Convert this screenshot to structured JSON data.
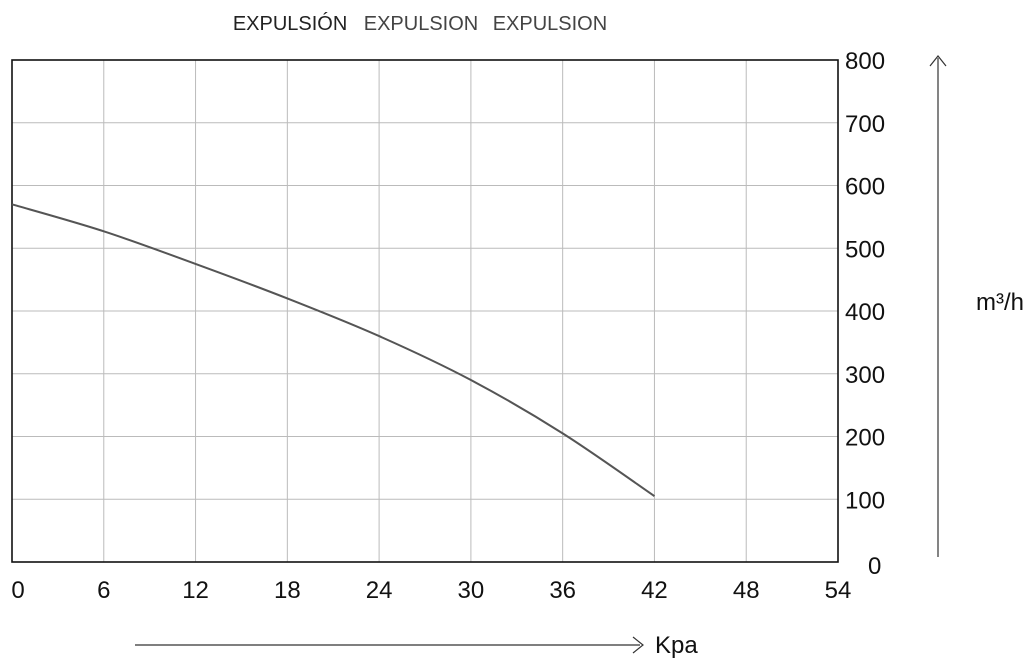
{
  "chart_data": {
    "type": "line",
    "title_parts": [
      "EXPULSIÓN",
      "EXPULSION",
      "EXPULSION"
    ],
    "xlabel": "Kpa",
    "ylabel": "m³/h",
    "xlim": [
      0,
      54
    ],
    "ylim": [
      0,
      800
    ],
    "x_ticks": [
      0,
      6,
      12,
      18,
      24,
      30,
      36,
      42,
      48,
      54
    ],
    "y_ticks": [
      0,
      100,
      200,
      300,
      400,
      500,
      600,
      700,
      800
    ],
    "grid": true,
    "series": [
      {
        "x": [
          0,
          6,
          12,
          18,
          24,
          30,
          36,
          42
        ],
        "values": [
          570,
          527,
          475,
          420,
          360,
          290,
          205,
          105
        ]
      }
    ],
    "colors": {
      "line": "#555555",
      "grid": "#bbbbbb",
      "frame": "#111111"
    }
  }
}
